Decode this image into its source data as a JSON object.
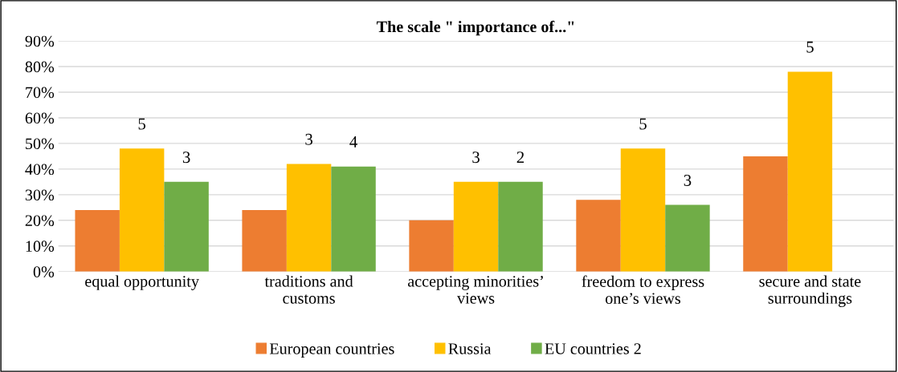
{
  "chart_data": {
    "type": "bar",
    "title": "The scale \" importance of...\"",
    "categories": [
      "equal opportunity",
      "traditions and\ncustoms",
      "accepting minorities’\nviews",
      "freedom to express\none’s views",
      "secure and state\nsurroundings"
    ],
    "series": [
      {
        "name": "European countries",
        "color": "#ed7d31",
        "values": [
          0.24,
          0.24,
          0.2,
          0.28,
          0.45
        ]
      },
      {
        "name": "Russia",
        "color": "#ffc000",
        "values": [
          0.48,
          0.42,
          0.35,
          0.48,
          0.78
        ]
      },
      {
        "name": "EU countries 2",
        "color": "#70ad47",
        "values": [
          0.35,
          0.41,
          0.35,
          0.26,
          null
        ]
      }
    ],
    "annotations": [
      "5",
      "3",
      "3",
      "4",
      "3",
      "2",
      "5",
      "3",
      "5"
    ],
    "ylim": [
      0,
      0.9
    ],
    "yticks": [
      {
        "value": 0,
        "label": "0%"
      },
      {
        "value": 0.1,
        "label": "10%"
      },
      {
        "value": 0.2,
        "label": "20%"
      },
      {
        "value": 0.3,
        "label": "30%"
      },
      {
        "value": 0.4,
        "label": "40%"
      },
      {
        "value": 0.5,
        "label": "50%"
      },
      {
        "value": 0.6,
        "label": "60%"
      },
      {
        "value": 0.7,
        "label": "70%"
      },
      {
        "value": 0.8,
        "label": "80%"
      },
      {
        "value": 0.9,
        "label": "90%"
      }
    ],
    "grid": "y",
    "legend": "bottom"
  }
}
